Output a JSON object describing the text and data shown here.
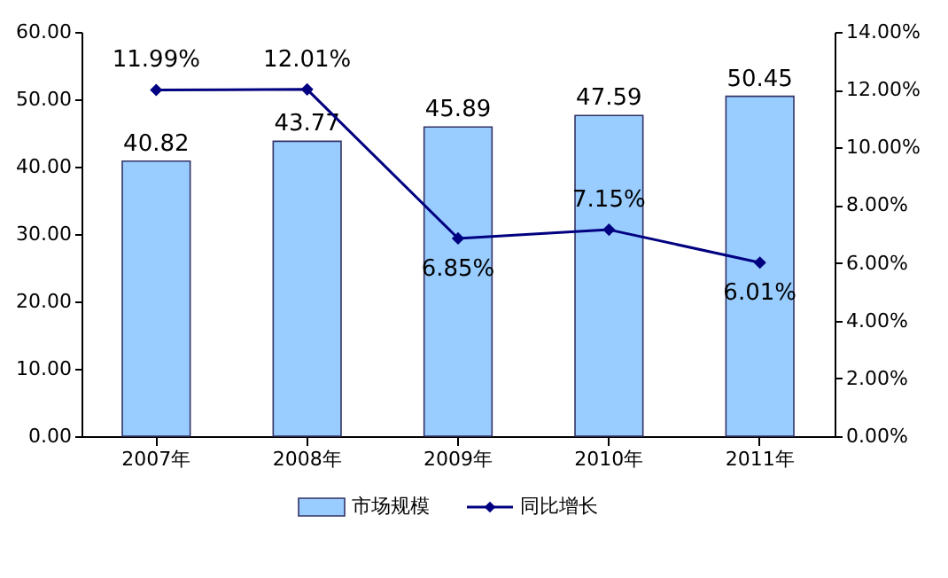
{
  "chart_data": {
    "type": "bar",
    "categories": [
      "2007年",
      "2008年",
      "2009年",
      "2010年",
      "2011年"
    ],
    "series": [
      {
        "name": "市场规模",
        "color": "#99ccff",
        "values": [
          40.82,
          43.77,
          45.89,
          47.59,
          50.45
        ],
        "value_labels": [
          "40.82",
          "43.77",
          "45.89",
          "47.59",
          "50.45"
        ]
      },
      {
        "name": "同比增长",
        "type": "line",
        "axis": "y2",
        "color": "#000080",
        "values": [
          11.99,
          12.01,
          6.85,
          7.15,
          6.01
        ],
        "value_labels": [
          "11.99%",
          "12.01%",
          "6.85%",
          "7.15%",
          "6.01%"
        ]
      }
    ],
    "ylim": [
      0,
      60
    ],
    "yticks": [
      {
        "value": 0,
        "label": "0.00"
      },
      {
        "value": 10,
        "label": "10.00"
      },
      {
        "value": 20,
        "label": "20.00"
      },
      {
        "value": 30,
        "label": "30.00"
      },
      {
        "value": 40,
        "label": "40.00"
      },
      {
        "value": 50,
        "label": "50.00"
      },
      {
        "value": 60,
        "label": "60.00"
      }
    ],
    "y2lim": [
      0,
      14
    ],
    "y2ticks": [
      {
        "value": 0,
        "label": "0.00%"
      },
      {
        "value": 2,
        "label": "2.00%"
      },
      {
        "value": 4,
        "label": "4.00%"
      },
      {
        "value": 6,
        "label": "6.00%"
      },
      {
        "value": 8,
        "label": "8.00%"
      },
      {
        "value": 10,
        "label": "10.00%"
      },
      {
        "value": 12,
        "label": "12.00%"
      },
      {
        "value": 14,
        "label": "14.00%"
      }
    ],
    "marker": "diamond",
    "legend": "bottom"
  }
}
